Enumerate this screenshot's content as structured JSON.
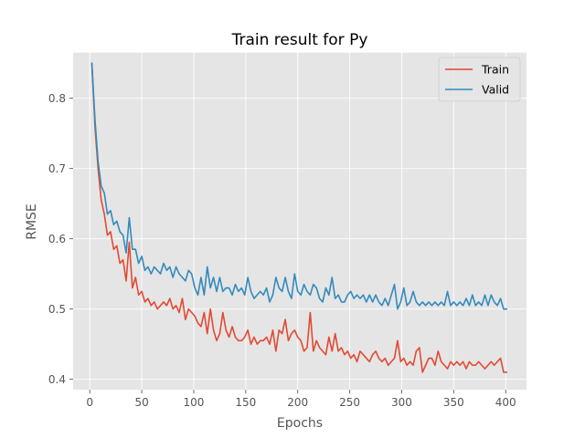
{
  "chart_data": {
    "type": "line",
    "title": "Train result for Py",
    "xlabel": "Epochs",
    "ylabel": "RMSE",
    "xlim": [
      -16,
      420
    ],
    "ylim": [
      0.385,
      0.865
    ],
    "xticks": [
      0,
      50,
      100,
      150,
      200,
      250,
      300,
      350,
      400
    ],
    "yticks": [
      0.4,
      0.5,
      0.6,
      0.7,
      0.8
    ],
    "grid": true,
    "legend_position": "top-right",
    "colors": {
      "background": "#e5e5e5",
      "grid": "#ffffff",
      "train": "#e24a33",
      "valid": "#348abd"
    },
    "series": [
      {
        "name": "Train",
        "color": "#e24a33",
        "x": [
          2,
          5,
          8,
          11,
          14,
          17,
          20,
          23,
          26,
          29,
          32,
          35,
          38,
          41,
          44,
          47,
          50,
          53,
          56,
          59,
          62,
          65,
          68,
          71,
          74,
          77,
          80,
          83,
          86,
          89,
          92,
          95,
          98,
          101,
          104,
          107,
          110,
          113,
          116,
          119,
          122,
          125,
          128,
          131,
          134,
          137,
          140,
          143,
          146,
          149,
          152,
          155,
          158,
          161,
          164,
          167,
          170,
          173,
          176,
          179,
          182,
          185,
          188,
          191,
          194,
          197,
          200,
          203,
          206,
          209,
          212,
          215,
          218,
          221,
          224,
          227,
          230,
          233,
          236,
          239,
          242,
          245,
          248,
          251,
          254,
          257,
          260,
          263,
          266,
          269,
          272,
          275,
          278,
          281,
          284,
          287,
          290,
          293,
          296,
          299,
          302,
          305,
          308,
          311,
          314,
          317,
          320,
          323,
          326,
          329,
          332,
          335,
          338,
          341,
          344,
          347,
          350,
          353,
          356,
          359,
          362,
          365,
          368,
          371,
          374,
          377,
          380,
          383,
          386,
          389,
          392,
          395,
          398,
          401
        ],
        "values": [
          0.85,
          0.76,
          0.7,
          0.655,
          0.635,
          0.605,
          0.61,
          0.585,
          0.59,
          0.565,
          0.57,
          0.54,
          0.595,
          0.53,
          0.545,
          0.52,
          0.525,
          0.51,
          0.515,
          0.505,
          0.51,
          0.5,
          0.505,
          0.51,
          0.505,
          0.515,
          0.5,
          0.505,
          0.495,
          0.515,
          0.485,
          0.5,
          0.495,
          0.49,
          0.48,
          0.475,
          0.495,
          0.465,
          0.5,
          0.47,
          0.455,
          0.465,
          0.495,
          0.47,
          0.46,
          0.475,
          0.46,
          0.455,
          0.455,
          0.46,
          0.47,
          0.45,
          0.46,
          0.45,
          0.455,
          0.455,
          0.46,
          0.45,
          0.47,
          0.44,
          0.47,
          0.465,
          0.485,
          0.455,
          0.465,
          0.47,
          0.46,
          0.455,
          0.44,
          0.445,
          0.495,
          0.44,
          0.455,
          0.445,
          0.44,
          0.435,
          0.46,
          0.44,
          0.465,
          0.44,
          0.445,
          0.435,
          0.44,
          0.43,
          0.435,
          0.425,
          0.44,
          0.435,
          0.43,
          0.425,
          0.435,
          0.44,
          0.43,
          0.425,
          0.43,
          0.42,
          0.425,
          0.43,
          0.455,
          0.425,
          0.43,
          0.42,
          0.425,
          0.42,
          0.44,
          0.445,
          0.41,
          0.42,
          0.43,
          0.43,
          0.42,
          0.44,
          0.425,
          0.42,
          0.415,
          0.425,
          0.42,
          0.425,
          0.42,
          0.425,
          0.415,
          0.425,
          0.42,
          0.42,
          0.425,
          0.42,
          0.415,
          0.42,
          0.425,
          0.42,
          0.425,
          0.43,
          0.41,
          0.41
        ]
      },
      {
        "name": "Valid",
        "color": "#348abd",
        "x": [
          2,
          5,
          8,
          11,
          14,
          17,
          20,
          23,
          26,
          29,
          32,
          35,
          38,
          41,
          44,
          47,
          50,
          53,
          56,
          59,
          62,
          65,
          68,
          71,
          74,
          77,
          80,
          83,
          86,
          89,
          92,
          95,
          98,
          101,
          104,
          107,
          110,
          113,
          116,
          119,
          122,
          125,
          128,
          131,
          134,
          137,
          140,
          143,
          146,
          149,
          152,
          155,
          158,
          161,
          164,
          167,
          170,
          173,
          176,
          179,
          182,
          185,
          188,
          191,
          194,
          197,
          200,
          203,
          206,
          209,
          212,
          215,
          218,
          221,
          224,
          227,
          230,
          233,
          236,
          239,
          242,
          245,
          248,
          251,
          254,
          257,
          260,
          263,
          266,
          269,
          272,
          275,
          278,
          281,
          284,
          287,
          290,
          293,
          296,
          299,
          302,
          305,
          308,
          311,
          314,
          317,
          320,
          323,
          326,
          329,
          332,
          335,
          338,
          341,
          344,
          347,
          350,
          353,
          356,
          359,
          362,
          365,
          368,
          371,
          374,
          377,
          380,
          383,
          386,
          389,
          392,
          395,
          398,
          401
        ],
        "values": [
          0.85,
          0.77,
          0.71,
          0.675,
          0.665,
          0.635,
          0.64,
          0.62,
          0.625,
          0.61,
          0.605,
          0.58,
          0.63,
          0.585,
          0.585,
          0.565,
          0.575,
          0.555,
          0.56,
          0.55,
          0.56,
          0.555,
          0.55,
          0.565,
          0.555,
          0.56,
          0.545,
          0.56,
          0.55,
          0.545,
          0.54,
          0.555,
          0.55,
          0.53,
          0.52,
          0.545,
          0.52,
          0.56,
          0.53,
          0.545,
          0.525,
          0.545,
          0.525,
          0.53,
          0.53,
          0.52,
          0.535,
          0.525,
          0.53,
          0.52,
          0.545,
          0.525,
          0.515,
          0.52,
          0.525,
          0.52,
          0.53,
          0.51,
          0.52,
          0.545,
          0.53,
          0.525,
          0.545,
          0.525,
          0.515,
          0.55,
          0.525,
          0.52,
          0.535,
          0.525,
          0.52,
          0.535,
          0.53,
          0.515,
          0.51,
          0.53,
          0.52,
          0.545,
          0.515,
          0.52,
          0.51,
          0.51,
          0.52,
          0.525,
          0.515,
          0.52,
          0.515,
          0.52,
          0.51,
          0.52,
          0.51,
          0.52,
          0.51,
          0.505,
          0.515,
          0.505,
          0.52,
          0.535,
          0.5,
          0.51,
          0.53,
          0.505,
          0.51,
          0.525,
          0.51,
          0.505,
          0.51,
          0.505,
          0.51,
          0.505,
          0.51,
          0.505,
          0.51,
          0.505,
          0.525,
          0.505,
          0.51,
          0.505,
          0.51,
          0.505,
          0.515,
          0.505,
          0.52,
          0.505,
          0.51,
          0.505,
          0.52,
          0.505,
          0.52,
          0.51,
          0.505,
          0.515,
          0.5,
          0.5
        ]
      }
    ]
  }
}
